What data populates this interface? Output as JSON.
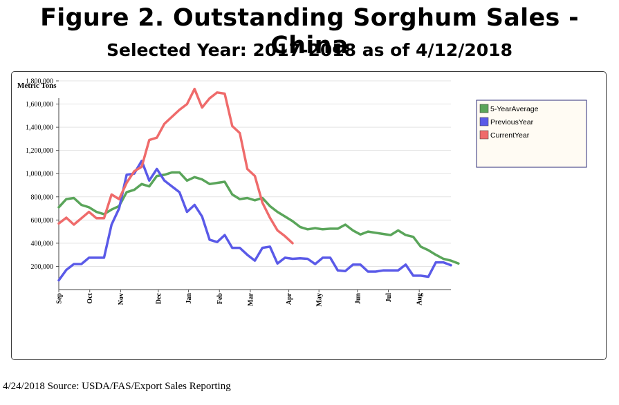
{
  "header": {
    "title": "Figure 2. Outstanding Sorghum Sales - China",
    "subtitle": "Selected Year: 2017-2018 as of 4/12/2018"
  },
  "footer": {
    "source": "4/24/2018 Source: USDA/FAS/Export Sales Reporting"
  },
  "chart_data": {
    "type": "line",
    "ylabel": "Metric Tons",
    "xlabel": "",
    "ylim": [
      0,
      1800000
    ],
    "yticks": [
      200000,
      400000,
      600000,
      800000,
      1000000,
      1200000,
      1400000,
      1600000,
      1800000
    ],
    "ytick_labels": [
      "200,000",
      "400,000",
      "600,000",
      "800,000",
      "1,000,000",
      "1,200,000",
      "1,400,000",
      "1,600,000",
      "1,800,000"
    ],
    "x_range_weeks": [
      0,
      52
    ],
    "month_ticks": [
      {
        "label": "Sep",
        "week": 0
      },
      {
        "label": "Oct",
        "week": 4.1
      },
      {
        "label": "Nov",
        "week": 8.2
      },
      {
        "label": "Dec",
        "week": 13.2
      },
      {
        "label": "Jan",
        "week": 17.2
      },
      {
        "label": "Feb",
        "week": 21.3
      },
      {
        "label": "Mar",
        "week": 25.4
      },
      {
        "label": "Apr",
        "week": 30.5
      },
      {
        "label": "May",
        "week": 34.5
      },
      {
        "label": "Jun",
        "week": 39.6
      },
      {
        "label": "Jul",
        "week": 43.7
      },
      {
        "label": "Aug",
        "week": 47.8
      }
    ],
    "grid": "horizontal",
    "legend_position": "top-right",
    "series": [
      {
        "name": "5-YearAverage",
        "color": "#5aa55a",
        "values": [
          710000,
          780000,
          790000,
          730000,
          710000,
          670000,
          650000,
          690000,
          720000,
          840000,
          860000,
          910000,
          890000,
          980000,
          990000,
          1010000,
          1010000,
          940000,
          970000,
          950000,
          910000,
          920000,
          930000,
          820000,
          780000,
          790000,
          770000,
          790000,
          720000,
          670000,
          630000,
          590000,
          540000,
          520000,
          530000,
          520000,
          525000,
          525000,
          560000,
          510000,
          475000,
          500000,
          490000,
          480000,
          470000,
          510000,
          470000,
          455000,
          370000,
          340000,
          300000,
          265000,
          250000,
          225000
        ]
      },
      {
        "name": "PreviousYear",
        "color": "#5a5ae8",
        "values": [
          80000,
          170000,
          220000,
          220000,
          275000,
          275000,
          275000,
          560000,
          700000,
          990000,
          1000000,
          1110000,
          940000,
          1040000,
          940000,
          890000,
          840000,
          670000,
          730000,
          630000,
          430000,
          410000,
          470000,
          360000,
          360000,
          300000,
          250000,
          360000,
          370000,
          225000,
          275000,
          265000,
          270000,
          265000,
          220000,
          275000,
          275000,
          165000,
          160000,
          215000,
          215000,
          155000,
          155000,
          165000,
          165000,
          165000,
          215000,
          120000,
          120000,
          110000,
          235000,
          235000,
          210000
        ]
      },
      {
        "name": "CurrentYear",
        "color": "#ef6b6b",
        "values": [
          570000,
          620000,
          560000,
          615000,
          670000,
          615000,
          615000,
          820000,
          780000,
          920000,
          1020000,
          1060000,
          1290000,
          1310000,
          1430000,
          1490000,
          1550000,
          1600000,
          1730000,
          1570000,
          1650000,
          1700000,
          1690000,
          1410000,
          1350000,
          1040000,
          980000,
          750000,
          620000,
          510000,
          460000,
          400000
        ]
      }
    ]
  }
}
